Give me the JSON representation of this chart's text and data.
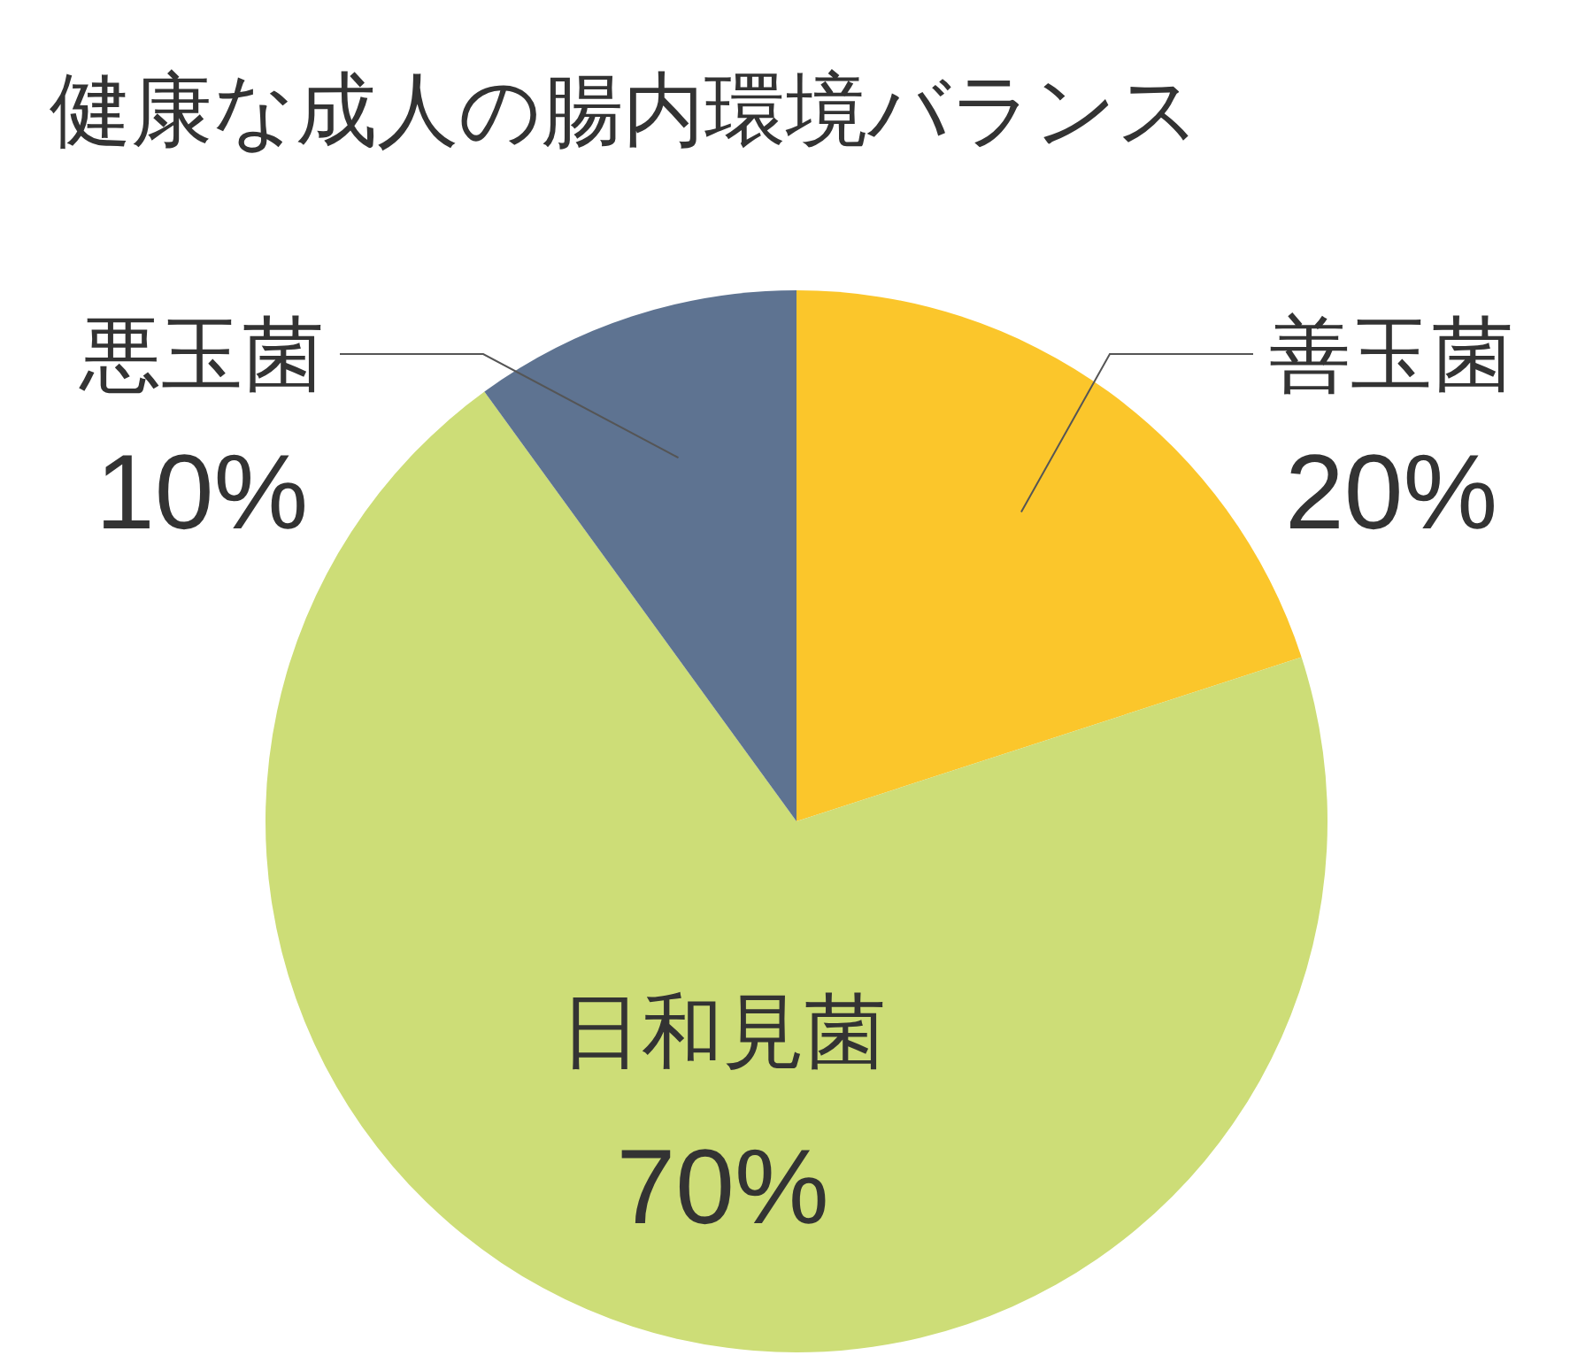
{
  "chart_data": {
    "type": "pie",
    "title": "健康な成人の腸内環境バランス",
    "categories": [
      "善玉菌",
      "日和見菌",
      "悪玉菌"
    ],
    "values": [
      20,
      70,
      10
    ],
    "colors": [
      "#fbc62b",
      "#cddd77",
      "#5e7391"
    ],
    "value_labels": [
      "20%",
      "70%",
      "10%"
    ]
  }
}
